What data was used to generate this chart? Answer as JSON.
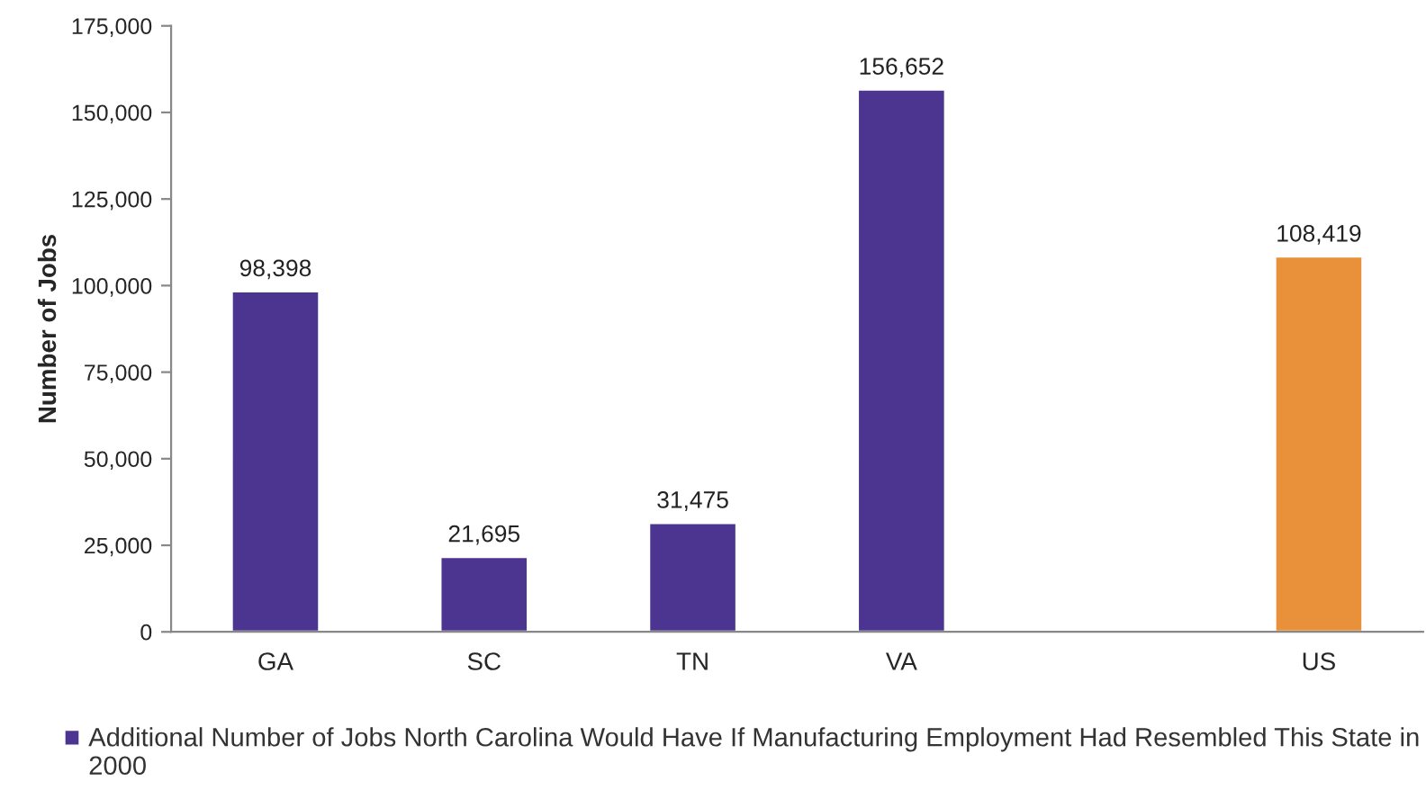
{
  "chart_data": {
    "type": "bar",
    "ylabel": "Number of Jobs",
    "categories": [
      "GA",
      "SC",
      "TN",
      "VA",
      null,
      "US"
    ],
    "series": [
      {
        "name": "Additional Number of Jobs North Carolina Would Have If Manufacturing Employment Had Resembled This State in 2000",
        "color": "#4b3590",
        "colors": [
          "#4b3590",
          "#4b3590",
          "#4b3590",
          "#4b3590",
          "#4b3590",
          "#e8903a"
        ],
        "values": [
          98398,
          21695,
          31475,
          156652,
          null,
          108419
        ],
        "value_labels": [
          "98,398",
          "21,695",
          "31,475",
          "156,652",
          null,
          "108,419"
        ]
      }
    ],
    "ylim": [
      0,
      175000
    ],
    "yticks": [
      0,
      {
        "value": 25000,
        "label": "25,000"
      },
      {
        "value": 50000,
        "label": "50,000"
      },
      {
        "value": 75000,
        "label": "75,000"
      },
      {
        "value": 100000,
        "label": "100,000"
      },
      {
        "value": 125000,
        "label": "125,000"
      },
      {
        "value": 150000,
        "label": "150,000"
      },
      {
        "value": 175000,
        "label": "175,000"
      }
    ],
    "grid": false,
    "legend": "bottom"
  }
}
